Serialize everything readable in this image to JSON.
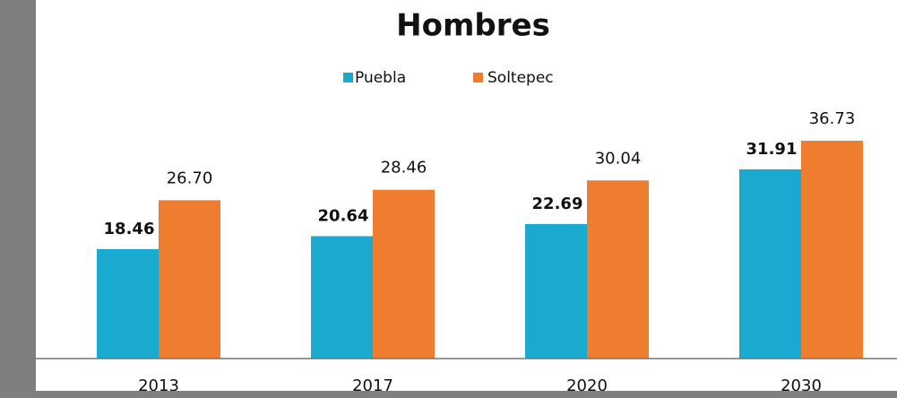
{
  "chart_data": {
    "type": "bar",
    "title": "Hombres",
    "categories": [
      "2013",
      "2017",
      "2020",
      "2030"
    ],
    "series": [
      {
        "name": "Puebla",
        "color": "#1aa9cf",
        "values": [
          18.46,
          20.64,
          22.69,
          31.91
        ],
        "value_labels": [
          "18.46",
          "20.64",
          "22.69",
          "31.91"
        ]
      },
      {
        "name": "Soltepec",
        "color": "#ee7d2f",
        "values": [
          26.7,
          28.46,
          30.04,
          36.73
        ],
        "value_labels": [
          "26.70",
          "28.46",
          "30.04",
          "36.73"
        ]
      }
    ],
    "legend": "top"
  }
}
